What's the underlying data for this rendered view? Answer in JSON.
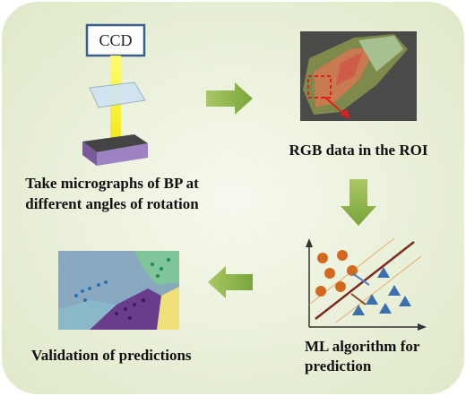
{
  "ccd_label": "CCD",
  "steps": [
    {
      "lines": [
        "Take micrographs of BP at",
        "different angles of rotation"
      ]
    },
    {
      "lines": [
        "RGB data in the ROI"
      ]
    },
    {
      "lines": [
        "ML algorithm for",
        "prediction"
      ]
    },
    {
      "lines": [
        "Validation of predictions"
      ]
    }
  ]
}
